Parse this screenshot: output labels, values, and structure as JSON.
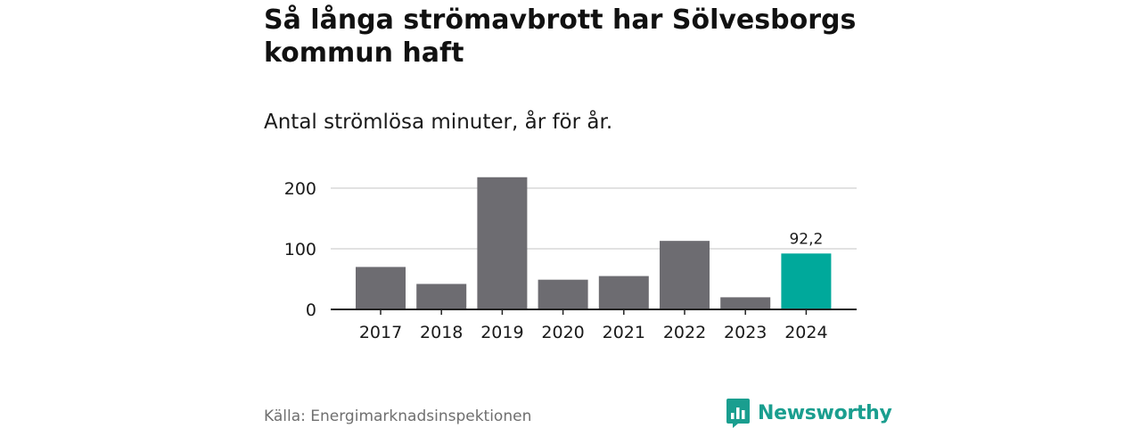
{
  "title": "Så långa strömavbrott har Sölvesborgs kommun haft",
  "subtitle": "Antal strömlösa minuter, år för år.",
  "source": "Källa: Energimarknadsinspektionen",
  "brand": {
    "name": "Newsworthy",
    "icon": "newsworthy-logo-icon",
    "color": "#1a9e8f"
  },
  "chart_data": {
    "type": "bar",
    "categories": [
      "2017",
      "2018",
      "2019",
      "2020",
      "2021",
      "2022",
      "2023",
      "2024"
    ],
    "values": [
      70,
      42,
      218,
      49,
      55,
      113,
      20,
      92.2
    ],
    "data_labels": [
      {
        "category": "2024",
        "text": "92,2"
      }
    ],
    "highlight": "2024",
    "ylim": [
      0,
      200
    ],
    "yticks": [
      0,
      100,
      200
    ],
    "ytick_labels": [
      "0",
      "100",
      "200"
    ],
    "xlabel": "",
    "ylabel": "",
    "grid": true,
    "colors": {
      "bar": "#6d6c71",
      "highlight": "#00a99b",
      "grid": "#d9d9d9",
      "axis": "#222222",
      "text": "#1a1a1a"
    }
  }
}
